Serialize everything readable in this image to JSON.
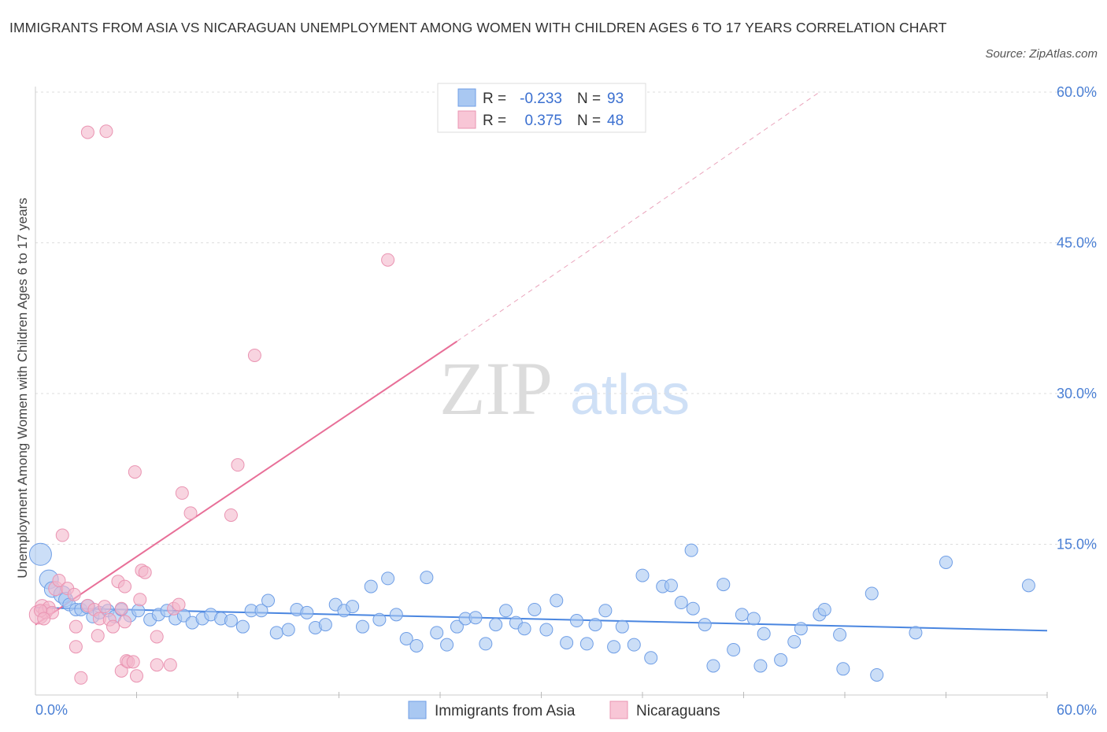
{
  "title": "IMMIGRANTS FROM ASIA VS NICARAGUAN UNEMPLOYMENT AMONG WOMEN WITH CHILDREN AGES 6 TO 17 YEARS CORRELATION CHART",
  "source": "Source: ZipAtlas.com",
  "watermark": {
    "zip": "ZIP",
    "atlas": "atlas"
  },
  "colors": {
    "blue": "#4a86e0",
    "blue_fill": "#a9c8f2",
    "pink": "#e86f98",
    "pink_fill": "#f4b8cc",
    "tick": "#4a7fd4"
  },
  "legend": {
    "r_label": "R =",
    "n_label": "N =",
    "rows": [
      {
        "series": "Immigrants from Asia",
        "r": "-0.233",
        "n": "93"
      },
      {
        "series": "Nicaraguans",
        "r": "0.375",
        "n": "48"
      }
    ]
  },
  "chart_data": {
    "type": "scatter",
    "xlabel": "",
    "ylabel": "Unemployment Among Women with Children Ages 6 to 17 years",
    "xlim": [
      0,
      60
    ],
    "ylim": [
      0,
      60
    ],
    "x_tick_labels": [
      "0.0%",
      "60.0%"
    ],
    "y_ticks": [
      15,
      30,
      45,
      60
    ],
    "y_tick_labels": [
      "15.0%",
      "30.0%",
      "45.0%",
      "60.0%"
    ],
    "grid": true,
    "series": [
      {
        "name": "Immigrants from Asia",
        "color": "#4a86e0",
        "r": -0.233,
        "n": 93,
        "trend": {
          "x": [
            0,
            60
          ],
          "y": [
            8.7,
            6.4
          ]
        },
        "points": [
          [
            0.3,
            14.0,
            14
          ],
          [
            0.8,
            11.5,
            12
          ],
          [
            1.0,
            10.5,
            10
          ],
          [
            1.6,
            10.0,
            11
          ],
          [
            1.8,
            9.5,
            9
          ],
          [
            2.0,
            9.0,
            8
          ],
          [
            2.4,
            8.5,
            8
          ],
          [
            2.7,
            8.5,
            8
          ],
          [
            3.1,
            8.8,
            9
          ],
          [
            3.4,
            7.8,
            8
          ],
          [
            3.8,
            8.2,
            8
          ],
          [
            4.3,
            8.4,
            8
          ],
          [
            4.7,
            7.8,
            8
          ],
          [
            5.1,
            8.5,
            8
          ],
          [
            5.6,
            7.9,
            8
          ],
          [
            6.1,
            8.4,
            8
          ],
          [
            6.8,
            7.5,
            8
          ],
          [
            7.3,
            8.0,
            8
          ],
          [
            7.8,
            8.4,
            8
          ],
          [
            8.3,
            7.6,
            8
          ],
          [
            8.8,
            7.9,
            8
          ],
          [
            9.3,
            7.2,
            8
          ],
          [
            9.9,
            7.6,
            8
          ],
          [
            10.4,
            8.0,
            8
          ],
          [
            11.0,
            7.6,
            8
          ],
          [
            11.6,
            7.4,
            8
          ],
          [
            12.3,
            6.8,
            8
          ],
          [
            12.8,
            8.4,
            8
          ],
          [
            13.4,
            8.4,
            8
          ],
          [
            13.8,
            9.4,
            8
          ],
          [
            14.3,
            6.2,
            8
          ],
          [
            15.0,
            6.5,
            8
          ],
          [
            15.5,
            8.5,
            8
          ],
          [
            16.1,
            8.2,
            8
          ],
          [
            16.6,
            6.7,
            8
          ],
          [
            17.2,
            7.0,
            8
          ],
          [
            17.8,
            9.0,
            8
          ],
          [
            18.3,
            8.4,
            8
          ],
          [
            18.8,
            8.8,
            8
          ],
          [
            19.4,
            6.8,
            8
          ],
          [
            19.9,
            10.8,
            8
          ],
          [
            20.4,
            7.5,
            8
          ],
          [
            20.9,
            11.6,
            8
          ],
          [
            21.4,
            8.0,
            8
          ],
          [
            22.0,
            5.6,
            8
          ],
          [
            22.6,
            4.9,
            8
          ],
          [
            23.2,
            11.7,
            8
          ],
          [
            23.8,
            6.2,
            8
          ],
          [
            24.4,
            5.0,
            8
          ],
          [
            25.0,
            6.8,
            8
          ],
          [
            25.5,
            7.6,
            8
          ],
          [
            26.1,
            7.7,
            8
          ],
          [
            26.7,
            5.1,
            8
          ],
          [
            27.3,
            7.0,
            8
          ],
          [
            27.9,
            8.4,
            8
          ],
          [
            28.5,
            7.2,
            8
          ],
          [
            29.0,
            6.6,
            8
          ],
          [
            29.6,
            8.5,
            8
          ],
          [
            30.3,
            6.5,
            8
          ],
          [
            30.9,
            9.4,
            8
          ],
          [
            31.5,
            5.2,
            8
          ],
          [
            32.1,
            7.4,
            8
          ],
          [
            32.7,
            5.1,
            8
          ],
          [
            33.2,
            7.0,
            8
          ],
          [
            33.8,
            8.4,
            8
          ],
          [
            34.3,
            4.8,
            8
          ],
          [
            34.8,
            6.8,
            8
          ],
          [
            35.5,
            5.0,
            8
          ],
          [
            36.0,
            11.9,
            8
          ],
          [
            36.5,
            3.7,
            8
          ],
          [
            37.2,
            10.8,
            8
          ],
          [
            37.7,
            10.9,
            8
          ],
          [
            38.3,
            9.2,
            8
          ],
          [
            38.9,
            14.4,
            8
          ],
          [
            39.0,
            8.6,
            8
          ],
          [
            39.7,
            7.0,
            8
          ],
          [
            40.2,
            2.9,
            8
          ],
          [
            40.8,
            11.0,
            8
          ],
          [
            41.4,
            4.5,
            8
          ],
          [
            41.9,
            8.0,
            8
          ],
          [
            42.6,
            7.6,
            8
          ],
          [
            43.0,
            2.9,
            8
          ],
          [
            43.2,
            6.1,
            8
          ],
          [
            44.2,
            3.5,
            8
          ],
          [
            45.0,
            5.3,
            8
          ],
          [
            45.4,
            6.6,
            8
          ],
          [
            46.5,
            8.0,
            8
          ],
          [
            46.8,
            8.5,
            8
          ],
          [
            47.7,
            6.0,
            8
          ],
          [
            47.9,
            2.6,
            8
          ],
          [
            49.6,
            10.1,
            8
          ],
          [
            49.9,
            2.0,
            8
          ],
          [
            52.2,
            6.2,
            8
          ],
          [
            54.0,
            13.2,
            8
          ],
          [
            58.9,
            10.9,
            8
          ]
        ]
      },
      {
        "name": "Nicaraguans",
        "color": "#e86f98",
        "r": 0.375,
        "n": 48,
        "trend": {
          "x": [
            0,
            25
          ],
          "y": [
            7.0,
            35.2
          ]
        },
        "trend_extension": {
          "x": [
            25,
            46.5
          ],
          "y": [
            35.2,
            60
          ]
        },
        "points": [
          [
            0.2,
            8.0,
            12
          ],
          [
            0.4,
            8.8,
            9
          ],
          [
            0.6,
            8.3,
            9
          ],
          [
            0.8,
            8.7,
            8
          ],
          [
            1.0,
            8.2,
            8
          ],
          [
            1.2,
            10.6,
            9
          ],
          [
            1.4,
            11.4,
            8
          ],
          [
            1.6,
            15.9,
            8
          ],
          [
            1.9,
            10.6,
            8
          ],
          [
            2.3,
            10.0,
            8
          ],
          [
            2.4,
            6.8,
            8
          ],
          [
            2.4,
            4.8,
            8
          ],
          [
            2.7,
            1.7,
            8
          ],
          [
            3.1,
            8.9,
            8
          ],
          [
            3.5,
            8.5,
            8
          ],
          [
            3.7,
            5.9,
            8
          ],
          [
            3.8,
            7.6,
            8
          ],
          [
            4.1,
            8.8,
            8
          ],
          [
            4.4,
            7.5,
            8
          ],
          [
            4.6,
            6.8,
            8
          ],
          [
            4.9,
            11.3,
            8
          ],
          [
            5.1,
            8.6,
            8
          ],
          [
            5.1,
            2.4,
            8
          ],
          [
            5.3,
            10.8,
            8
          ],
          [
            5.3,
            7.3,
            8
          ],
          [
            5.4,
            3.4,
            8
          ],
          [
            5.5,
            3.3,
            8
          ],
          [
            5.8,
            3.3,
            8
          ],
          [
            5.9,
            22.2,
            8
          ],
          [
            6.0,
            1.9,
            8
          ],
          [
            6.2,
            9.5,
            8
          ],
          [
            6.3,
            12.4,
            8
          ],
          [
            6.5,
            12.2,
            8
          ],
          [
            7.2,
            5.8,
            8
          ],
          [
            7.2,
            3.0,
            8
          ],
          [
            8.0,
            3.0,
            8
          ],
          [
            8.2,
            8.6,
            8
          ],
          [
            8.5,
            9.0,
            8
          ],
          [
            8.7,
            20.1,
            8
          ],
          [
            9.2,
            18.1,
            8
          ],
          [
            11.6,
            17.9,
            8
          ],
          [
            12.0,
            22.9,
            8
          ],
          [
            13.0,
            33.8,
            8
          ],
          [
            20.9,
            43.3,
            8
          ],
          [
            3.1,
            56.0,
            8
          ],
          [
            4.2,
            56.1,
            8
          ],
          [
            0.3,
            8.4,
            8
          ],
          [
            0.5,
            7.6,
            8
          ]
        ]
      }
    ]
  }
}
